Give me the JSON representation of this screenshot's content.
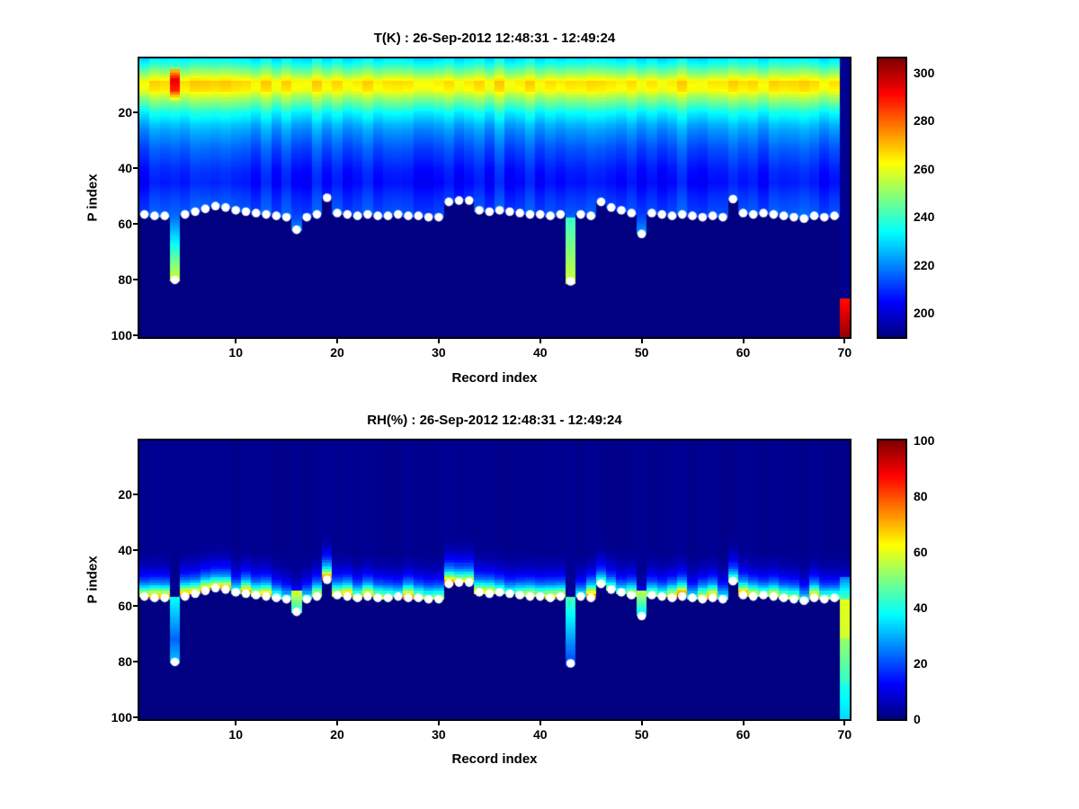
{
  "figure": {
    "background": "#ffffff",
    "marker_color": "#ffffff"
  },
  "chart_data": [
    {
      "type": "heatmap",
      "title": "T(K) : 26-Sep-2012 12:48:31 - 12:49:24",
      "xlabel": "Record index",
      "ylabel": "P index",
      "colormap": "jet",
      "n_records": 70,
      "n_levels": 100,
      "x_range": [
        0.5,
        70.5
      ],
      "y_range": [
        0.5,
        100.5
      ],
      "y_axis_reversed": true,
      "x_ticks": [
        10,
        20,
        30,
        40,
        50,
        60,
        70
      ],
      "y_ticks": [
        20,
        40,
        60,
        80,
        100
      ],
      "value_range": [
        190,
        306
      ],
      "colorbar_ticks": [
        200,
        220,
        240,
        260,
        280,
        300
      ],
      "base_profile": {
        "p": [
          1,
          3,
          6,
          9,
          12,
          16,
          20,
          26,
          33,
          40,
          45,
          50,
          55,
          58,
          65,
          72,
          80,
          86
        ],
        "v": [
          232,
          238,
          252,
          266,
          263,
          247,
          234,
          222,
          214,
          208,
          206,
          210,
          213,
          216,
          228,
          242,
          256,
          262
        ]
      },
      "below_surface_value": 190,
      "column_noise_amplitude": 3.5,
      "column_gain_base": 1,
      "column_gain_spread": 0,
      "surface_p": [
        56.5,
        57,
        57,
        80,
        56.5,
        55.5,
        54.5,
        53.5,
        54,
        55,
        55.5,
        56,
        56.5,
        57,
        57.5,
        62,
        57.5,
        56.5,
        50.5,
        56,
        56.5,
        57,
        56.5,
        57,
        57,
        56.5,
        57,
        57,
        57.5,
        57.5,
        52,
        51.5,
        51.5,
        55,
        55.5,
        55,
        55.5,
        56,
        56.5,
        56.5,
        57,
        56.5,
        80.5,
        56.5,
        57,
        52,
        54,
        55,
        56,
        63.5,
        56,
        56.5,
        57,
        56.5,
        57,
        57.5,
        57,
        57.5,
        51,
        56,
        56.5,
        56,
        56.5,
        57,
        57.5,
        58,
        57,
        57.5,
        57,
        57
      ],
      "surface_marker": {
        "shape": "circle",
        "color": "#ffffff",
        "radius": 4.8,
        "skip_records": [
          70
        ]
      },
      "anomalies": [
        {
          "record": 4,
          "segments": [
            {
              "p0": 5,
              "p1": 8,
              "v0": 272,
              "v1": 294
            },
            {
              "p0": 8,
              "p1": 12,
              "v0": 294,
              "v1": 288
            },
            {
              "p0": 12,
              "p1": 15,
              "v0": 288,
              "v1": 260
            }
          ]
        },
        {
          "record": 43,
          "segments": [
            {
              "p0": 58,
              "p1": 81,
              "v0": 240,
              "v1": 257
            }
          ]
        },
        {
          "record": 70,
          "segments": [
            {
              "p0": 1,
              "p1": 86,
              "v0": 192,
              "v1": 192
            },
            {
              "p0": 87,
              "p1": 100,
              "v0": 290,
              "v1": 303
            }
          ]
        }
      ]
    },
    {
      "type": "heatmap",
      "title": "RH(%) : 26-Sep-2012 12:48:31 - 12:49:24",
      "xlabel": "Record index",
      "ylabel": "P index",
      "colormap": "jet",
      "n_records": 70,
      "n_levels": 100,
      "x_range": [
        0.5,
        70.5
      ],
      "y_range": [
        0.5,
        100.5
      ],
      "y_axis_reversed": true,
      "x_ticks": [
        10,
        20,
        30,
        40,
        50,
        60,
        70
      ],
      "y_ticks": [
        20,
        40,
        60,
        80,
        100
      ],
      "value_range": [
        0,
        100
      ],
      "colorbar_ticks": [
        0,
        20,
        40,
        60,
        80,
        100
      ],
      "relative_to_surface": true,
      "band_profile": {
        "d": [
          0,
          1.5,
          3,
          5,
          8,
          12,
          16
        ],
        "v": [
          62,
          50,
          36,
          22,
          11,
          4,
          1.5
        ]
      },
      "below_surface_value": 0,
      "column_noise_amplitude": 0,
      "column_gain_base": 0.65,
      "column_gain_spread": 0.75,
      "surface_p": [
        56.5,
        57,
        57,
        80,
        56.5,
        55.5,
        54.5,
        53.5,
        54,
        55,
        55.5,
        56,
        56.5,
        57,
        57.5,
        62,
        57.5,
        56.5,
        50.5,
        56,
        56.5,
        57,
        56.5,
        57,
        57,
        56.5,
        57,
        57,
        57.5,
        57.5,
        52,
        51.5,
        51.5,
        55,
        55.5,
        55,
        55.5,
        56,
        56.5,
        56.5,
        57,
        56.5,
        80.5,
        56.5,
        57,
        52,
        54,
        55,
        56,
        63.5,
        56,
        56.5,
        57,
        56.5,
        57,
        57.5,
        57,
        57.5,
        51,
        56,
        56.5,
        56,
        56.5,
        57,
        57.5,
        58,
        57,
        57.5,
        57,
        57
      ],
      "surface_marker": {
        "shape": "circle",
        "color": "#ffffff",
        "radius": 4.8,
        "skip_records": [
          70
        ]
      },
      "anomalies": [
        {
          "record": 4,
          "segments": [
            {
              "p0": 57,
              "p1": 72,
              "v0": 38,
              "v1": 22
            },
            {
              "p0": 72,
              "p1": 80,
              "v0": 22,
              "v1": 32
            }
          ]
        },
        {
          "record": 16,
          "segments": [
            {
              "p0": 55,
              "p1": 62,
              "v0": 58,
              "v1": 40
            }
          ]
        },
        {
          "record": 43,
          "segments": [
            {
              "p0": 57,
              "p1": 81,
              "v0": 44,
              "v1": 18
            }
          ]
        },
        {
          "record": 50,
          "segments": [
            {
              "p0": 55,
              "p1": 63,
              "v0": 55,
              "v1": 35
            }
          ]
        },
        {
          "record": 70,
          "segments": [
            {
              "p0": 50,
              "p1": 58,
              "v0": 25,
              "v1": 48
            },
            {
              "p0": 58,
              "p1": 72,
              "v0": 60,
              "v1": 58
            },
            {
              "p0": 72,
              "p1": 88,
              "v0": 52,
              "v1": 42
            },
            {
              "p0": 88,
              "p1": 100,
              "v0": 40,
              "v1": 34
            }
          ]
        }
      ]
    }
  ]
}
